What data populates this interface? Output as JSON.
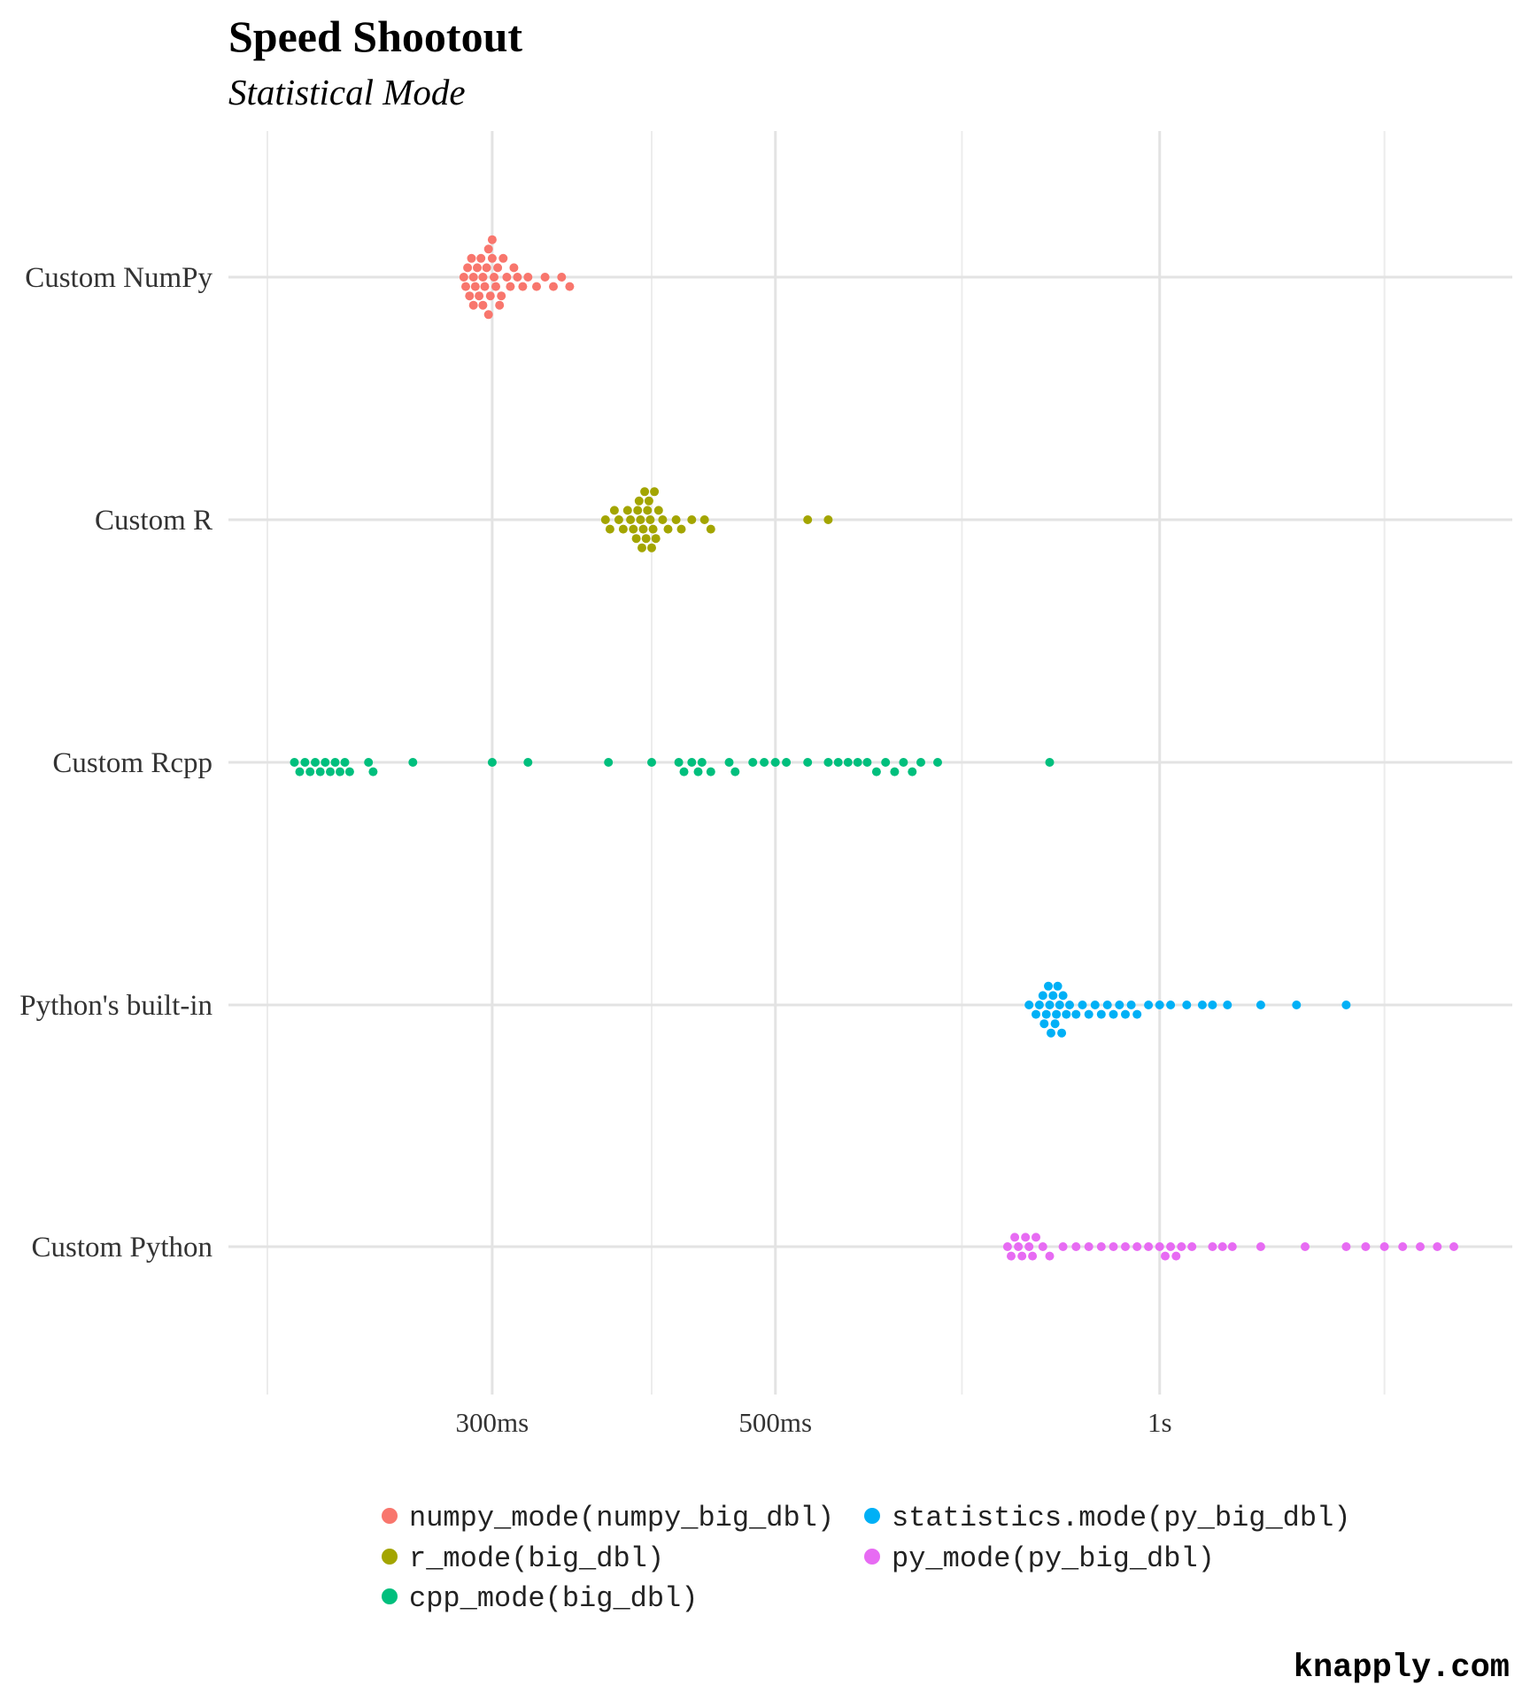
{
  "chart_data": {
    "type": "scatter",
    "subtype": "beeswarm",
    "title": "Speed Shootout",
    "subtitle": "Statistical Mode",
    "x_scale": "log",
    "x_unit": "seconds",
    "xlim": [
      0.2,
      1.7
    ],
    "x_ticks": [
      {
        "value": 0.3,
        "label": "300ms"
      },
      {
        "value": 0.5,
        "label": "500ms"
      },
      {
        "value": 1.0,
        "label": "1s"
      }
    ],
    "x_minor_gridlines": [
      0.2,
      0.4,
      0.7,
      1.5
    ],
    "categories": [
      "Custom NumPy",
      "Custom R",
      "Custom Rcpp",
      "Python's built-in",
      "Custom Python"
    ],
    "grid": true,
    "legend_position": "bottom",
    "series": [
      {
        "name": "numpy_mode(numpy_big_dbl)",
        "category": "Custom NumPy",
        "color": "#F8766D",
        "values": [
          0.285,
          0.286,
          0.287,
          0.288,
          0.289,
          0.29,
          0.29,
          0.291,
          0.292,
          0.293,
          0.294,
          0.295,
          0.295,
          0.296,
          0.297,
          0.298,
          0.298,
          0.299,
          0.3,
          0.3,
          0.301,
          0.302,
          0.303,
          0.304,
          0.305,
          0.306,
          0.308,
          0.31,
          0.312,
          0.314,
          0.317,
          0.32,
          0.325,
          0.33,
          0.335,
          0.34,
          0.345
        ]
      },
      {
        "name": "r_mode(big_dbl)",
        "category": "Custom R",
        "color": "#A3A500",
        "values": [
          0.368,
          0.371,
          0.374,
          0.377,
          0.38,
          0.383,
          0.385,
          0.387,
          0.389,
          0.39,
          0.391,
          0.392,
          0.393,
          0.394,
          0.395,
          0.396,
          0.397,
          0.398,
          0.399,
          0.4,
          0.401,
          0.402,
          0.403,
          0.405,
          0.408,
          0.412,
          0.418,
          0.422,
          0.43,
          0.44,
          0.445,
          0.53,
          0.55
        ]
      },
      {
        "name": "cpp_mode(big_dbl)",
        "category": "Custom Rcpp",
        "color": "#00BF7D",
        "values": [
          0.21,
          0.212,
          0.214,
          0.216,
          0.218,
          0.22,
          0.222,
          0.224,
          0.226,
          0.228,
          0.23,
          0.232,
          0.24,
          0.242,
          0.26,
          0.3,
          0.32,
          0.37,
          0.4,
          0.42,
          0.424,
          0.43,
          0.435,
          0.438,
          0.445,
          0.46,
          0.465,
          0.48,
          0.49,
          0.5,
          0.51,
          0.53,
          0.55,
          0.56,
          0.57,
          0.58,
          0.59,
          0.6,
          0.61,
          0.62,
          0.63,
          0.64,
          0.65,
          0.67,
          0.82
        ]
      },
      {
        "name": "statistics.mode(py_big_dbl)",
        "category": "Python's built-in",
        "color": "#00B0F6",
        "values": [
          0.79,
          0.8,
          0.805,
          0.81,
          0.812,
          0.815,
          0.818,
          0.82,
          0.822,
          0.825,
          0.828,
          0.83,
          0.832,
          0.835,
          0.838,
          0.84,
          0.845,
          0.85,
          0.86,
          0.87,
          0.88,
          0.89,
          0.9,
          0.91,
          0.92,
          0.93,
          0.94,
          0.95,
          0.96,
          0.98,
          1.0,
          1.02,
          1.05,
          1.08,
          1.1,
          1.13,
          1.2,
          1.28,
          1.4
        ]
      },
      {
        "name": "py_mode(py_big_dbl)",
        "category": "Custom Python",
        "color": "#E76BF3",
        "values": [
          0.76,
          0.765,
          0.77,
          0.775,
          0.78,
          0.785,
          0.79,
          0.795,
          0.8,
          0.81,
          0.82,
          0.84,
          0.86,
          0.88,
          0.9,
          0.92,
          0.94,
          0.96,
          0.98,
          1.0,
          1.01,
          1.02,
          1.03,
          1.04,
          1.06,
          1.1,
          1.12,
          1.14,
          1.2,
          1.3,
          1.4,
          1.45,
          1.5,
          1.55,
          1.6,
          1.65,
          1.7
        ]
      }
    ]
  },
  "watermark": "knapply.com"
}
